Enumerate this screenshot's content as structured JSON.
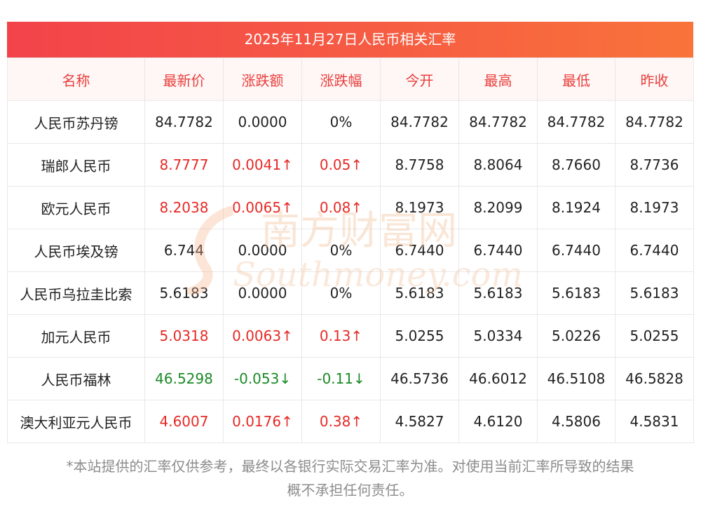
{
  "title": "2025年11月27日人民币相关汇率",
  "headers": [
    "名称",
    "最新价",
    "涨跌额",
    "涨跌幅",
    "今开",
    "最高",
    "最低",
    "昨收"
  ],
  "rows": [
    {
      "name": "人民币苏丹镑",
      "latest": "84.7782",
      "change": "0.0000",
      "pct": "0%",
      "open": "84.7782",
      "high": "84.7782",
      "low": "84.7782",
      "prev": "84.7782",
      "trend": "flat"
    },
    {
      "name": "瑞郎人民币",
      "latest": "8.7777",
      "change": "0.0041↑",
      "pct": "0.05↑",
      "open": "8.7758",
      "high": "8.8064",
      "low": "8.7660",
      "prev": "8.7736",
      "trend": "up"
    },
    {
      "name": "欧元人民币",
      "latest": "8.2038",
      "change": "0.0065↑",
      "pct": "0.08↑",
      "open": "8.1973",
      "high": "8.2099",
      "low": "8.1924",
      "prev": "8.1973",
      "trend": "up"
    },
    {
      "name": "人民币埃及镑",
      "latest": "6.744",
      "change": "0.0000",
      "pct": "0%",
      "open": "6.7440",
      "high": "6.7440",
      "low": "6.7440",
      "prev": "6.7440",
      "trend": "flat"
    },
    {
      "name": "人民币乌拉圭比索",
      "latest": "5.6183",
      "change": "0.0000",
      "pct": "0%",
      "open": "5.6183",
      "high": "5.6183",
      "low": "5.6183",
      "prev": "5.6183",
      "trend": "flat"
    },
    {
      "name": "加元人民币",
      "latest": "5.0318",
      "change": "0.0063↑",
      "pct": "0.13↑",
      "open": "5.0255",
      "high": "5.0334",
      "low": "5.0226",
      "prev": "5.0255",
      "trend": "up"
    },
    {
      "name": "人民币福林",
      "latest": "46.5298",
      "change": "-0.053↓",
      "pct": "-0.11↓",
      "open": "46.5736",
      "high": "46.6012",
      "low": "46.5108",
      "prev": "46.5828",
      "trend": "down"
    },
    {
      "name": "澳大利亚元人民币",
      "latest": "4.6007",
      "change": "0.0176↑",
      "pct": "0.38↑",
      "open": "4.5827",
      "high": "4.6120",
      "low": "4.5806",
      "prev": "4.5831",
      "trend": "up"
    }
  ],
  "note_line1": "*本站提供的汇率仅供参考，最终以各银行实际交易汇率为准。对使用当前汇率所导致的结果",
  "note_line2": "概不承担任何责任。",
  "watermark": {
    "cn": "南方财富网",
    "en": "Southmoney.com"
  },
  "colors": {
    "header_bg": "#f2434a",
    "up": "#e62a26",
    "down": "#1a8a26",
    "header_text": "#e8403c"
  }
}
